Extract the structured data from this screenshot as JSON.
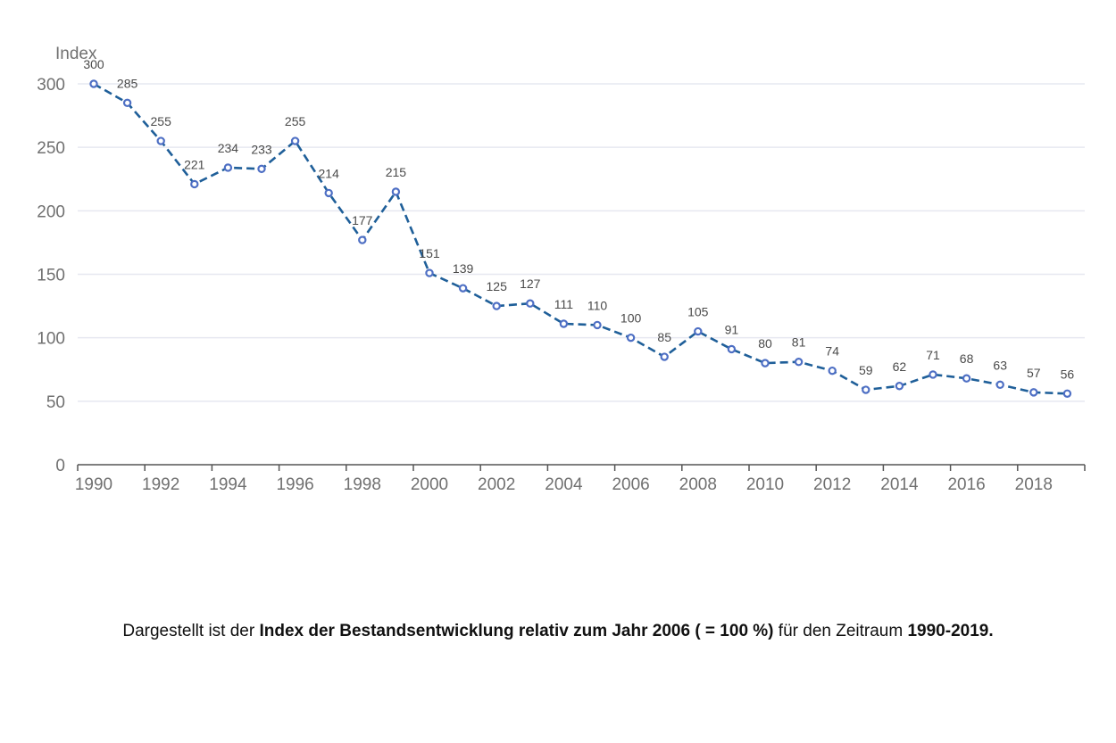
{
  "chart_data": {
    "type": "line",
    "ylabel": "Index",
    "xlabel": "",
    "title": "",
    "x": [
      1990,
      1991,
      1992,
      1993,
      1994,
      1995,
      1996,
      1997,
      1998,
      1999,
      2000,
      2001,
      2002,
      2003,
      2004,
      2005,
      2006,
      2007,
      2008,
      2009,
      2010,
      2011,
      2012,
      2013,
      2014,
      2015,
      2016,
      2017,
      2018,
      2019
    ],
    "series": [
      {
        "values": [
          300,
          285,
          255,
          221,
          234,
          233,
          255,
          214,
          177,
          215,
          151,
          139,
          125,
          127,
          111,
          110,
          100,
          85,
          105,
          91,
          80,
          81,
          74,
          59,
          62,
          71,
          68,
          63,
          57,
          56
        ],
        "color": "#1f5f99",
        "marker_color": "#4e6fc4",
        "line_style": "dashed"
      }
    ],
    "ylim": [
      0,
      300
    ],
    "yticks": [
      0,
      50,
      100,
      150,
      200,
      250,
      300
    ],
    "xlim": [
      1990,
      2019
    ],
    "xticks": [
      1990,
      1992,
      1994,
      1996,
      1998,
      2000,
      2002,
      2004,
      2006,
      2008,
      2010,
      2012,
      2014,
      2016,
      2018
    ],
    "grid": true,
    "grid_color": "#e6e8f0",
    "data_labels": true
  },
  "caption": {
    "part1": "Dargestellt ist der ",
    "bold1": "Index der Bestandsentwicklung relativ zum Jahr 2006 ( = 100 %)",
    "part2": " für den Zeitraum ",
    "bold2": "1990-2019."
  }
}
